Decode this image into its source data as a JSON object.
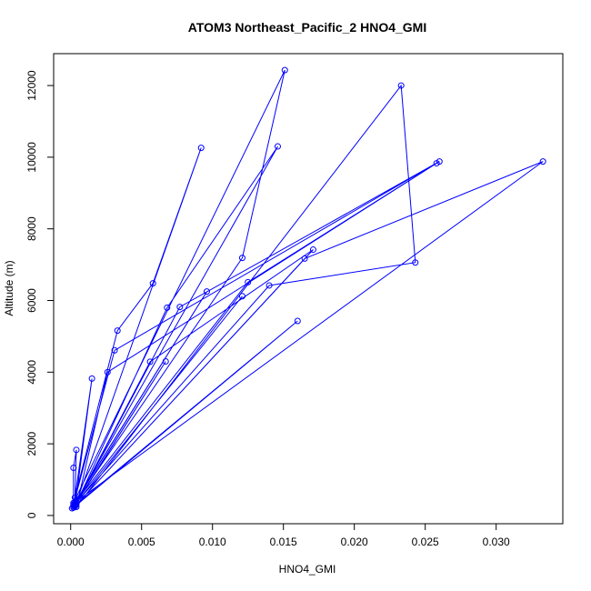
{
  "chart_data": {
    "type": "line",
    "title": "ATOM3 Northeast_Pacific_2 HNO4_GMI",
    "xlabel": "HNO4_GMI",
    "ylabel": "Altitude (m)",
    "xlim": [
      -0.0012,
      0.0347
    ],
    "ylim": [
      -230,
      12890
    ],
    "x_ticks": [
      0,
      0.005,
      0.01,
      0.015,
      0.02,
      0.025,
      0.03
    ],
    "x_tick_labels": [
      "0.000",
      "0.005",
      "0.010",
      "0.015",
      "0.020",
      "0.025",
      "0.030"
    ],
    "y_ticks": [
      0,
      2000,
      4000,
      6000,
      8000,
      10000,
      12000
    ],
    "y_tick_labels": [
      "0",
      "2000",
      "4000",
      "6000",
      "8000",
      "10000",
      "12000"
    ],
    "grid": false,
    "series": [
      {
        "color": "#0000ff",
        "marker": "open-circle",
        "points": [
          [
            0.0001,
            200
          ],
          [
            0.0002,
            300
          ],
          [
            0.0002,
            1330
          ],
          [
            0.0004,
            1830
          ],
          [
            0.0003,
            500
          ],
          [
            0.0015,
            3820
          ],
          [
            0.0003,
            250
          ],
          [
            0.0092,
            10260
          ],
          [
            0.0058,
            6480
          ],
          [
            0.0033,
            5160
          ],
          [
            0.0002,
            350
          ],
          [
            0.0151,
            12430
          ],
          [
            0.0121,
            7190
          ],
          [
            0.0004,
            400
          ],
          [
            0.0146,
            10300
          ],
          [
            0.0068,
            5800
          ],
          [
            0.0005,
            420
          ],
          [
            0.0077,
            5820
          ],
          [
            0.026,
            9880
          ],
          [
            0.0031,
            4610
          ],
          [
            0.0002,
            300
          ],
          [
            0.0096,
            6250
          ],
          [
            0.0003,
            350
          ],
          [
            0.0125,
            6510
          ],
          [
            0.0258,
            9830
          ],
          [
            0.0026,
            4000
          ],
          [
            0.0004,
            240
          ],
          [
            0.0233,
            12000
          ],
          [
            0.0243,
            7060
          ],
          [
            0.014,
            6420
          ],
          [
            0.0006,
            450
          ],
          [
            0.0333,
            9880
          ],
          [
            0.0165,
            7170
          ],
          [
            0.0004,
            300
          ],
          [
            0.0171,
            7420
          ],
          [
            0.0056,
            4290
          ],
          [
            0.0003,
            280
          ],
          [
            0.0067,
            4300
          ],
          [
            0.0003,
            300
          ],
          [
            0.0121,
            6120
          ],
          [
            0.0002,
            250
          ],
          [
            0.016,
            5430
          ],
          [
            0.0002,
            220
          ]
        ]
      }
    ]
  }
}
